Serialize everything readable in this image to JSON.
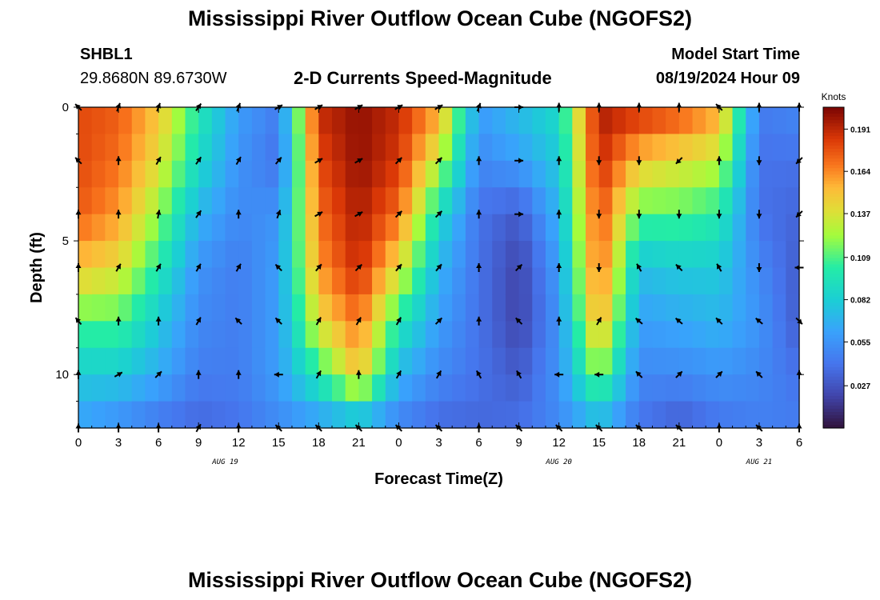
{
  "page": {
    "title": "Mississippi River Outflow Ocean Cube (NGOFS2)",
    "title_repeat": "Mississippi River Outflow Ocean Cube (NGOFS2)",
    "station_id": "SHBL1",
    "station_coords": "29.8680N  89.6730W",
    "plot_subtitle": "2-D Currents Speed-Magnitude",
    "model_start_label": "Model Start Time",
    "model_start_value": "08/19/2024 Hour 09"
  },
  "chart_data": {
    "type": "heatmap",
    "title": "2-D Currents Speed-Magnitude",
    "xlabel": "Forecast Time(Z)",
    "ylabel": "Depth (ft)",
    "x_tick_labels": [
      "0",
      "3",
      "6",
      "9",
      "12",
      "15",
      "18",
      "21",
      "0",
      "3",
      "6",
      "9",
      "12",
      "15",
      "18",
      "21",
      "0",
      "3",
      "6"
    ],
    "x_range_hours": [
      0,
      54
    ],
    "date_labels": [
      {
        "text": "AUG 19",
        "hour": 11
      },
      {
        "text": "AUG 20",
        "hour": 36
      },
      {
        "text": "AUG 21",
        "hour": 51
      }
    ],
    "y_tick_labels": [
      "0",
      "5",
      "10"
    ],
    "y_range_ft": [
      0,
      12
    ],
    "colorbar": {
      "label": "Knots",
      "tick_labels": [
        "0.191",
        "0.164",
        "0.137",
        "0.109",
        "0.082",
        "0.055",
        "0.027"
      ],
      "range": [
        0.0,
        0.205
      ]
    },
    "depth_levels_ft": [
      0,
      2,
      4,
      6,
      8,
      10,
      12
    ],
    "speed_anchor_hours": [
      0,
      3,
      6,
      9,
      12,
      15,
      18,
      21,
      24,
      27,
      30,
      33,
      36,
      39,
      42,
      45,
      48,
      51,
      54
    ],
    "speed_knots_by_depth": [
      [
        0.18,
        0.175,
        0.15,
        0.1,
        0.06,
        0.045,
        0.19,
        0.2,
        0.19,
        0.16,
        0.06,
        0.075,
        0.09,
        0.195,
        0.19,
        0.18,
        0.16,
        0.045,
        0.05
      ],
      [
        0.18,
        0.17,
        0.14,
        0.09,
        0.055,
        0.04,
        0.18,
        0.2,
        0.185,
        0.13,
        0.05,
        0.06,
        0.08,
        0.19,
        0.15,
        0.14,
        0.13,
        0.04,
        0.04
      ],
      [
        0.175,
        0.16,
        0.12,
        0.07,
        0.05,
        0.055,
        0.17,
        0.195,
        0.17,
        0.09,
        0.04,
        0.03,
        0.07,
        0.18,
        0.11,
        0.11,
        0.1,
        0.04,
        0.035
      ],
      [
        0.15,
        0.14,
        0.1,
        0.055,
        0.045,
        0.06,
        0.16,
        0.19,
        0.14,
        0.07,
        0.04,
        0.02,
        0.06,
        0.175,
        0.075,
        0.08,
        0.08,
        0.05,
        0.03
      ],
      [
        0.11,
        0.11,
        0.08,
        0.05,
        0.045,
        0.06,
        0.14,
        0.17,
        0.1,
        0.06,
        0.04,
        0.02,
        0.055,
        0.16,
        0.06,
        0.065,
        0.07,
        0.055,
        0.03
      ],
      [
        0.08,
        0.08,
        0.065,
        0.045,
        0.045,
        0.06,
        0.1,
        0.15,
        0.07,
        0.05,
        0.04,
        0.03,
        0.055,
        0.12,
        0.05,
        0.05,
        0.055,
        0.05,
        0.04
      ],
      [
        0.06,
        0.05,
        0.04,
        0.035,
        0.04,
        0.05,
        0.055,
        0.06,
        0.045,
        0.035,
        0.035,
        0.04,
        0.05,
        0.065,
        0.04,
        0.03,
        0.04,
        0.045,
        0.045
      ]
    ],
    "vector_depths_ft": [
      0,
      2,
      4,
      6,
      8,
      10,
      12
    ],
    "vector_hours": [
      0,
      3,
      6,
      9,
      12,
      15,
      18,
      21,
      24,
      27,
      30,
      33,
      36,
      39,
      42,
      45,
      48,
      51,
      54
    ],
    "vector_direction_deg_by_depth": [
      [
        315,
        20,
        20,
        35,
        20,
        60,
        60,
        60,
        60,
        60,
        20,
        90,
        0,
        0,
        0,
        0,
        315,
        0,
        0
      ],
      [
        315,
        0,
        30,
        35,
        30,
        40,
        60,
        60,
        45,
        45,
        0,
        90,
        0,
        180,
        180,
        225,
        0,
        180,
        225
      ],
      [
        0,
        0,
        10,
        35,
        0,
        20,
        60,
        60,
        45,
        45,
        0,
        90,
        0,
        180,
        180,
        180,
        180,
        180,
        225
      ],
      [
        0,
        30,
        30,
        30,
        30,
        315,
        40,
        45,
        40,
        40,
        0,
        45,
        0,
        180,
        330,
        315,
        330,
        180,
        270
      ],
      [
        320,
        0,
        0,
        30,
        315,
        315,
        30,
        30,
        30,
        45,
        0,
        315,
        0,
        30,
        310,
        310,
        315,
        310,
        135
      ],
      [
        0,
        60,
        45,
        0,
        0,
        270,
        30,
        0,
        30,
        30,
        330,
        330,
        270,
        270,
        315,
        45,
        45,
        315,
        0
      ],
      [
        0,
        0,
        0,
        30,
        0,
        315,
        315,
        315,
        315,
        315,
        0,
        315,
        315,
        315,
        315,
        315,
        0,
        315,
        0
      ]
    ]
  }
}
